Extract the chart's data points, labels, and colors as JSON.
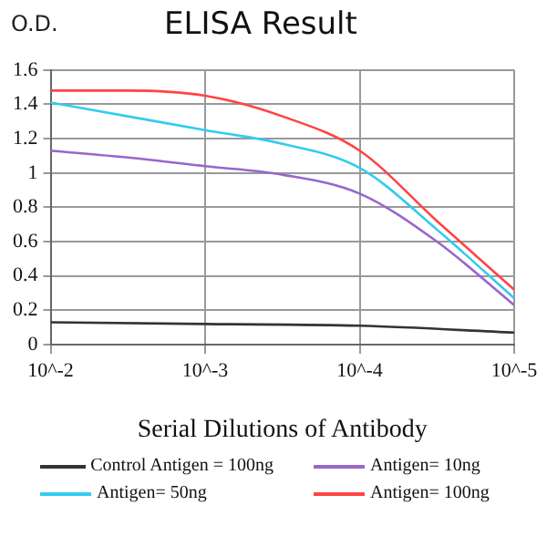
{
  "chart_data": {
    "type": "line",
    "title": "ELISA Result",
    "xlabel": "Serial Dilutions of Antibody",
    "ylabel": "O.D.",
    "xlim": [
      0.01,
      1e-05
    ],
    "xticks": [
      {
        "value": 0.01,
        "label": "10^-2"
      },
      {
        "value": 0.001,
        "label": "10^-3"
      },
      {
        "value": 0.0001,
        "label": "10^-4"
      },
      {
        "value": 1e-05,
        "label": "10^-5"
      }
    ],
    "log": "x",
    "ylim": [
      0,
      1.6
    ],
    "yticks": [
      0,
      0.2,
      0.4,
      0.6,
      0.8,
      1,
      1.2,
      1.4,
      1.6
    ],
    "grid": true,
    "legend": "bottom",
    "marker": "none",
    "line_style": "solid",
    "series": [
      {
        "name": "Control Antigen = 100ng",
        "color": "#333333",
        "x": [
          0.01,
          0.001,
          0.0001,
          1e-05
        ],
        "values": [
          0.13,
          0.12,
          0.11,
          0.07
        ]
      },
      {
        "name": "Antigen= 10ng",
        "color": "#9966cc",
        "x": [
          0.01,
          0.00316,
          0.001,
          0.000316,
          0.0001,
          3.16e-05,
          1e-05
        ],
        "values": [
          1.13,
          1.09,
          1.04,
          0.99,
          0.88,
          0.6,
          0.23
        ]
      },
      {
        "name": "Antigen= 50ng",
        "color": "#33ccee",
        "x": [
          0.01,
          0.00316,
          0.001,
          0.000316,
          0.0001,
          3.16e-05,
          1e-05
        ],
        "values": [
          1.41,
          1.33,
          1.25,
          1.17,
          1.03,
          0.67,
          0.27
        ]
      },
      {
        "name": "Antigen= 100ng",
        "color": "#ff4444",
        "x": [
          0.01,
          0.00316,
          0.001,
          0.000316,
          0.0001,
          3.16e-05,
          1e-05
        ],
        "values": [
          1.48,
          1.48,
          1.45,
          1.33,
          1.13,
          0.72,
          0.32
        ]
      }
    ]
  }
}
